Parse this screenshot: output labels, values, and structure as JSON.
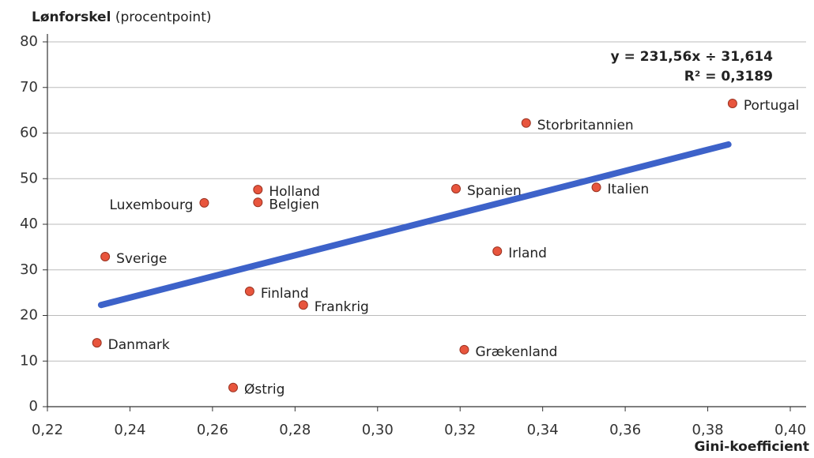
{
  "chart_data": {
    "type": "scatter",
    "y_label": {
      "bold": "Lønforskel",
      "rest": "(procentpoint)"
    },
    "x_label": "Gini-koefficient",
    "equation": "y = 231,56x ÷ 31,614",
    "r_squared": "R² = 0,3189",
    "categories": [
      "Portugal",
      "Storbritannien",
      "Spanien",
      "Italien",
      "Irland",
      "Grækenland",
      "Holland",
      "Belgien",
      "Luxembourg",
      "Sverige",
      "Finland",
      "Frankrig",
      "Danmark",
      "Østrig"
    ],
    "x": [
      0.386,
      0.336,
      0.319,
      0.353,
      0.329,
      0.321,
      0.271,
      0.271,
      0.258,
      0.234,
      0.269,
      0.282,
      0.232,
      0.265
    ],
    "values": [
      66.5,
      62.2,
      47.8,
      48.1,
      34.1,
      12.5,
      47.6,
      44.8,
      44.7,
      32.9,
      25.3,
      22.3,
      14.0,
      4.2
    ],
    "color": "#e8553d",
    "trendline": {
      "x": [
        0.233,
        0.385
      ],
      "y": [
        22.3,
        57.5
      ],
      "color": "#3d62c9"
    },
    "xlim": [
      0.22,
      0.4
    ],
    "xticks": [
      {
        "value": 0.22,
        "label": "0,22"
      },
      {
        "value": 0.24,
        "label": "0,24"
      },
      {
        "value": 0.26,
        "label": "0,26"
      },
      {
        "value": 0.28,
        "label": "0,28"
      },
      {
        "value": 0.3,
        "label": "0,30"
      },
      {
        "value": 0.32,
        "label": "0,32"
      },
      {
        "value": 0.34,
        "label": "0,34"
      },
      {
        "value": 0.36,
        "label": "0,36"
      },
      {
        "value": 0.38,
        "label": "0,38"
      },
      {
        "value": 0.4,
        "label": "0,40"
      }
    ],
    "ylim": [
      0,
      80
    ],
    "yticks": [
      0,
      10,
      20,
      30,
      40,
      50,
      60,
      70,
      80
    ],
    "grid": true
  }
}
